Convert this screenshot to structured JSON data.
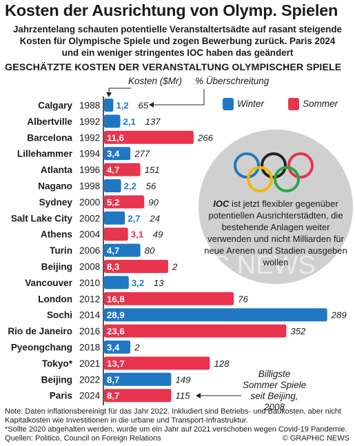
{
  "title": "Kosten der Ausrichtung von Olymp. Spielen",
  "intro": [
    "Jahrzentelang schauten potentielle Veranstaltertsädte auf rasant steigende",
    "Kosten für Olympische Spiele und zogen Bewerbung zurück. Paris 2024",
    "und ein weniger stringentes IOC haben das geändert"
  ],
  "subtitle": "GESCHÄTZTE KOSTEN DER VERANSTALTUNG OLYMPISCHER SPIELE",
  "col_cost": "Kosten ($Mr)",
  "col_overrun": "% Überschreitung",
  "legend": {
    "winter": "Winter",
    "summer": "Sommer"
  },
  "colors": {
    "winter": "#1f77c4",
    "summer": "#e8344e",
    "circle": "#d0d0d0",
    "axis": "#222222"
  },
  "circle_text": {
    "bold": "IOC",
    "rest": " ist jetzt flexibler gegenüber potentiellen Ausrichterstädten, die bestehende Anlagen weiter verwenden und nicht Milliarden für neue Arenen und Stadien ausgeben wollen"
  },
  "olympic_rings": [
    "#1f7ac2",
    "#222222",
    "#e8344e",
    "#f2b800",
    "#28a745"
  ],
  "callout": "Billigste Sommer Spiele seit Beijing, 2008",
  "notes": [
    "Note: Daten inflationsbereinigt für das Jahr 2022. Inkludiert sind Betriebs- und Baukosten, aber nicht",
    "Kapitalkosten wie Investitionen in die urbane und Transport-Infrastruktur.",
    "*Sollte 2020 abgehalten werden, wurde um ein Jahr auf 2021 verschoben wegen Covid-19 Pandemie.",
    "Quellen: Politico, Council on Foreign Relations"
  ],
  "copyright": "© GRAPHIC NEWS",
  "watermark": "GRAPHIC NEWS",
  "chart_data": {
    "type": "bar",
    "orientation": "horizontal",
    "title": "GESCHÄTZTE KOSTEN DER VERANSTALTUNG OLYMPISCHER SPIELE",
    "xlabel": "Kosten ($Mr)",
    "ylabel": "",
    "xlim": [
      0,
      29
    ],
    "categories": [
      "Calgary",
      "Albertville",
      "Barcelona",
      "Lillehammer",
      "Atlanta",
      "Nagano",
      "Sydney",
      "Salt Lake City",
      "Athens",
      "Turin",
      "Beijing",
      "Vancouver",
      "London",
      "Sochi",
      "Rio de Janeiro",
      "Pyeongchang",
      "Tokyo*",
      "Beijing",
      "Paris"
    ],
    "years": [
      "1988",
      "1992",
      "1992",
      "1994",
      "1996",
      "1998",
      "2000",
      "2002",
      "2004",
      "2006",
      "2008",
      "2010",
      "2012",
      "2014",
      "2016",
      "2018",
      "2021",
      "2022",
      "2024"
    ],
    "season": [
      "winter",
      "winter",
      "summer",
      "winter",
      "summer",
      "winter",
      "summer",
      "winter",
      "summer",
      "winter",
      "summer",
      "winter",
      "summer",
      "winter",
      "summer",
      "winter",
      "summer",
      "winter",
      "summer"
    ],
    "values": [
      1.2,
      2.1,
      11.6,
      3.4,
      4.7,
      2.2,
      5.2,
      2.7,
      3.1,
      4.7,
      8.3,
      3.2,
      16.8,
      28.9,
      23.6,
      3.4,
      13.7,
      8.7,
      8.7
    ],
    "value_labels": [
      "1,2",
      "2,1",
      "11,6",
      "3,4",
      "4,7",
      "2,2",
      "5,2",
      "2,7",
      "3,1",
      "4,7",
      "8,3",
      "3,2",
      "16,8",
      "28,9",
      "23,6",
      "3,4",
      "13,7",
      "8,7",
      "8,7"
    ],
    "overrun_pct": [
      65,
      137,
      266,
      277,
      151,
      56,
      90,
      24,
      49,
      80,
      2,
      13,
      76,
      289,
      352,
      2,
      128,
      149,
      115
    ],
    "legend": [
      "Winter",
      "Sommer"
    ],
    "legend_position": "top-right",
    "grid": false
  }
}
